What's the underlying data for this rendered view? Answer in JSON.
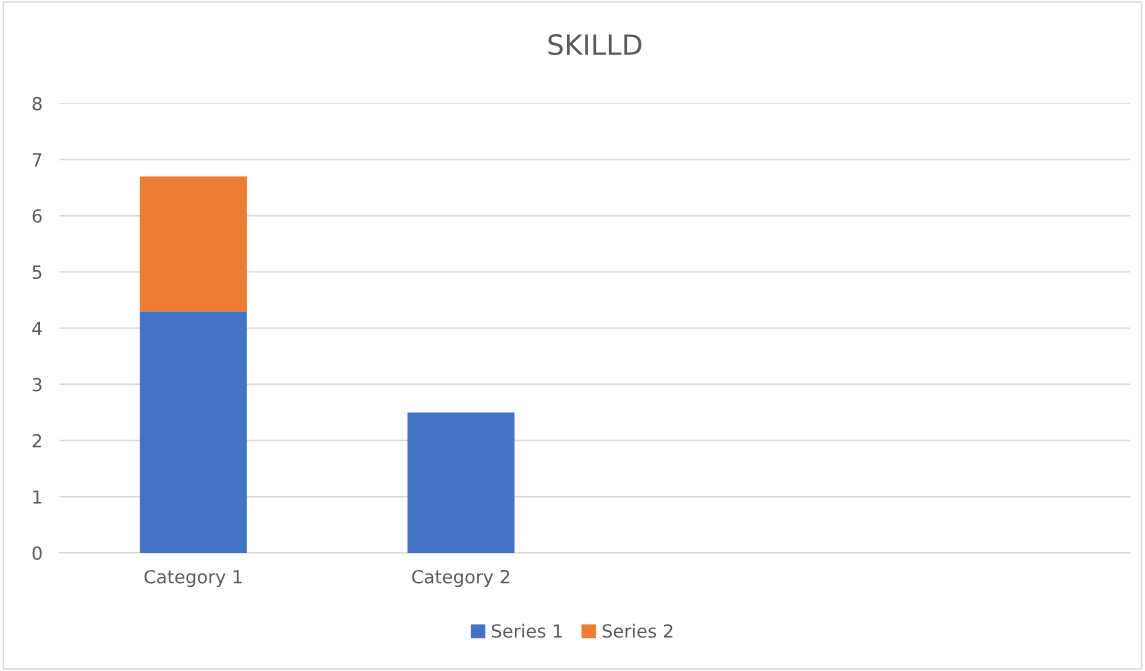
{
  "chart_data": {
    "type": "bar",
    "title": "SKILLD",
    "stacked": true,
    "categories": [
      "Category 1",
      "Category 2",
      null,
      null
    ],
    "series": [
      {
        "name": "Series 1",
        "color": "#4472c4",
        "values": [
          4.3,
          2.5,
          null,
          null
        ]
      },
      {
        "name": "Series 2",
        "color": "#ed7d31",
        "values": [
          2.4,
          null,
          null,
          null
        ]
      }
    ],
    "ylim": [
      0,
      8
    ],
    "yticks": [
      0,
      1,
      2,
      3,
      4,
      5,
      6,
      7,
      8
    ],
    "grid": "y",
    "legend": "bottom"
  }
}
